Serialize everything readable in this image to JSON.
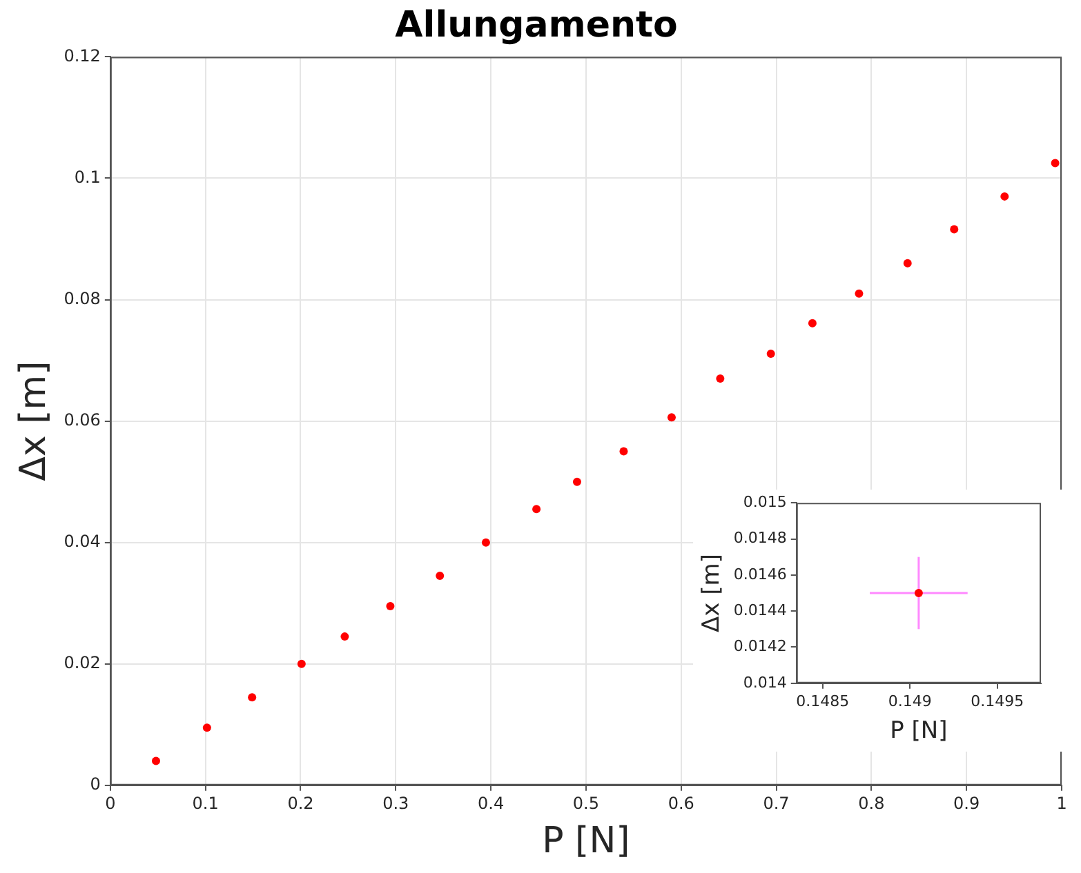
{
  "chart_data": [
    {
      "type": "scatter",
      "title": "Allungamento",
      "xlabel": "P [N]",
      "ylabel": "Δx [m]",
      "x": [
        0.048,
        0.1016,
        0.149,
        0.201,
        0.2464,
        0.2943,
        0.3464,
        0.3948,
        0.4479,
        0.4906,
        0.5396,
        0.59,
        0.6411,
        0.6943,
        0.738,
        0.787,
        0.838,
        0.887,
        0.94,
        0.9932
      ],
      "series": [
        {
          "color": "#ff0000",
          "values": [
            0.004,
            0.0095,
            0.0145,
            0.02,
            0.0245,
            0.0295,
            0.0345,
            0.04,
            0.0455,
            0.05,
            0.055,
            0.0606,
            0.067,
            0.0711,
            0.0761,
            0.081,
            0.086,
            0.0916,
            0.097,
            0.1025
          ]
        }
      ],
      "xlim": [
        0,
        1
      ],
      "xticks": [
        0,
        0.1,
        0.2,
        0.3,
        0.4,
        0.5,
        0.6,
        0.7,
        0.8,
        0.9,
        1
      ],
      "ylim": [
        0,
        0.12
      ],
      "yticks": [
        0,
        0.02,
        0.04,
        0.06,
        0.08,
        {
          "value": 0.1,
          "label": "0.1"
        },
        0.12
      ],
      "grid": true,
      "marker": "circle",
      "legend": false
    },
    {
      "type": "scatter",
      "xlabel": "P [N]",
      "ylabel": "Δx [m]",
      "x": [
        0.14905
      ],
      "series": [
        {
          "color": "#ff0000",
          "values": [
            0.0145
          ],
          "errors": [
            0.0002
          ],
          "xerrors": [
            0.00028
          ]
        }
      ],
      "xlim": [
        0.14835,
        0.14975
      ],
      "xticks": [
        0.1485,
        0.149,
        0.1495
      ],
      "ylim": [
        0.014,
        0.015
      ],
      "yticks": [
        0.014,
        0.0142,
        0.0144,
        0.0146,
        0.0148,
        0.015
      ],
      "grid": false,
      "marker": "circle",
      "legend": false
    }
  ]
}
